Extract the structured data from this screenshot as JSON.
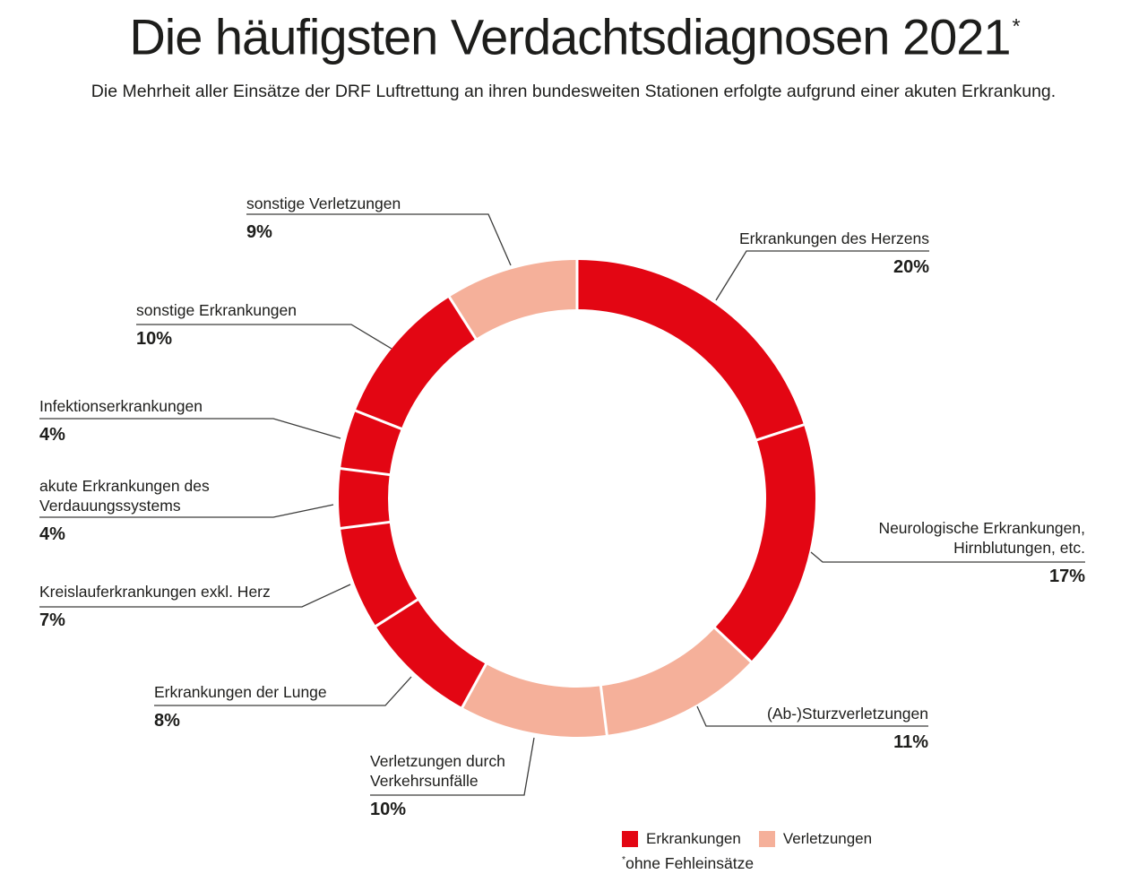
{
  "page": {
    "title": "Die häufigsten Verdachtsdiagnosen 2021",
    "title_marker": "*",
    "subtitle": "Die Mehrheit aller Einsätze der DRF Luftrettung an ihren bundesweiten Stationen erfolgte aufgrund einer akuten Erkrankung.",
    "footnote_marker": "*",
    "footnote_text": "ohne Fehleinsätze"
  },
  "colors": {
    "erkrankungen": "#e30613",
    "verletzungen": "#f5b09a",
    "text": "#1d1d1b",
    "leader_line": "#3c3c3b",
    "separator": "#ffffff"
  },
  "legend": {
    "items": [
      {
        "label": "Erkrankungen",
        "color_key": "erkrankungen"
      },
      {
        "label": "Verletzungen",
        "color_key": "verletzungen"
      }
    ]
  },
  "chart_data": {
    "type": "pie",
    "subtype": "donut",
    "title": "Die häufigsten Verdachtsdiagnosen 2021 (*ohne Fehleinsätze)",
    "unit": "%",
    "start_angle_deg": 0,
    "direction": "clockwise",
    "legend_position": "bottom",
    "segments": [
      {
        "id": "herz",
        "label": "Erkrankungen des Herzens",
        "label_lines": [
          "Erkrankungen des Herzens"
        ],
        "value": 20,
        "pct_label": "20%",
        "category": "erkrankungen"
      },
      {
        "id": "neuro",
        "label": "Neurologische Erkrankungen, Hirnblutungen, etc.",
        "label_lines": [
          "Neurologische Erkrankungen,",
          "Hirnblutungen, etc."
        ],
        "value": 17,
        "pct_label": "17%",
        "category": "erkrankungen"
      },
      {
        "id": "sturz",
        "label": "(Ab-)Sturzverletzungen",
        "label_lines": [
          "(Ab-)Sturzverletzungen"
        ],
        "value": 11,
        "pct_label": "11%",
        "category": "verletzungen"
      },
      {
        "id": "verkehr",
        "label": "Verletzungen durch Verkehrsunfälle",
        "label_lines": [
          "Verletzungen durch",
          "Verkehrsunfälle"
        ],
        "value": 10,
        "pct_label": "10%",
        "category": "verletzungen"
      },
      {
        "id": "lunge",
        "label": "Erkrankungen der Lunge",
        "label_lines": [
          "Erkrankungen der Lunge"
        ],
        "value": 8,
        "pct_label": "8%",
        "category": "erkrankungen"
      },
      {
        "id": "kreislauf",
        "label": "Kreislauferkrankungen exkl. Herz",
        "label_lines": [
          "Kreislauferkrankungen exkl. Herz"
        ],
        "value": 7,
        "pct_label": "7%",
        "category": "erkrankungen"
      },
      {
        "id": "verdauung",
        "label": "akute Erkrankungen des Verdauungssystems",
        "label_lines": [
          "akute Erkrankungen des",
          "Verdauungssystems"
        ],
        "value": 4,
        "pct_label": "4%",
        "category": "erkrankungen"
      },
      {
        "id": "infektion",
        "label": "Infektionserkrankungen",
        "label_lines": [
          "Infektionserkrankungen"
        ],
        "value": 4,
        "pct_label": "4%",
        "category": "erkrankungen"
      },
      {
        "id": "sonstige_erkrankungen",
        "label": "sonstige Erkrankungen",
        "label_lines": [
          "sonstige Erkrankungen"
        ],
        "value": 10,
        "pct_label": "10%",
        "category": "erkrankungen"
      },
      {
        "id": "sonstige_verletzungen",
        "label": "sonstige Verletzungen",
        "label_lines": [
          "sonstige Verletzungen"
        ],
        "value": 9,
        "pct_label": "9%",
        "category": "verletzungen"
      }
    ]
  }
}
